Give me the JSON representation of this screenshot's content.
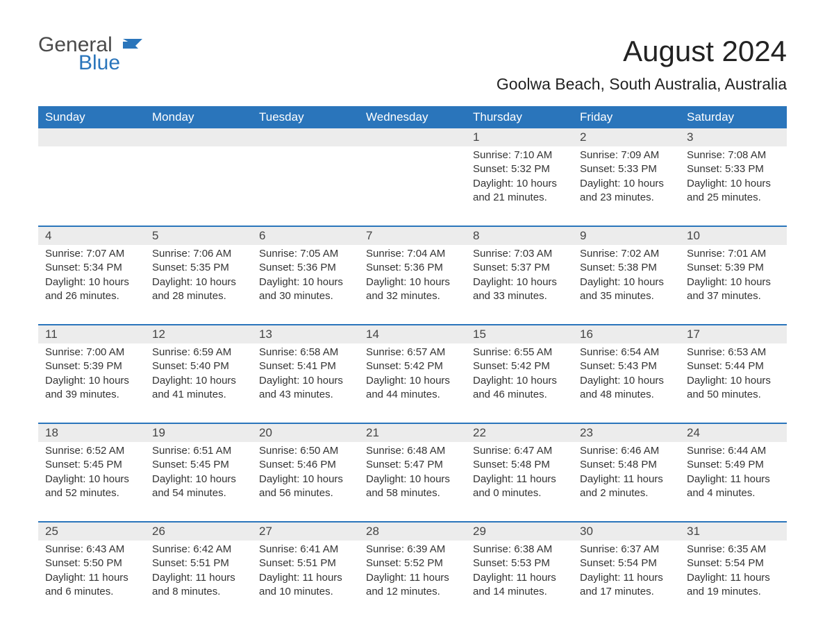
{
  "logo": {
    "general": "General",
    "blue": "Blue"
  },
  "header": {
    "month_title": "August 2024",
    "location": "Goolwa Beach, South Australia, Australia"
  },
  "colors": {
    "primary": "#2a75bb",
    "daynum_bg": "#ececec",
    "text": "#333333",
    "background": "#ffffff"
  },
  "day_labels": [
    "Sunday",
    "Monday",
    "Tuesday",
    "Wednesday",
    "Thursday",
    "Friday",
    "Saturday"
  ],
  "weeks": [
    [
      {
        "day": "",
        "sunrise": "",
        "sunset": "",
        "daylight": ""
      },
      {
        "day": "",
        "sunrise": "",
        "sunset": "",
        "daylight": ""
      },
      {
        "day": "",
        "sunrise": "",
        "sunset": "",
        "daylight": ""
      },
      {
        "day": "",
        "sunrise": "",
        "sunset": "",
        "daylight": ""
      },
      {
        "day": "1",
        "sunrise": "7:10 AM",
        "sunset": "5:32 PM",
        "daylight": "10 hours and 21 minutes."
      },
      {
        "day": "2",
        "sunrise": "7:09 AM",
        "sunset": "5:33 PM",
        "daylight": "10 hours and 23 minutes."
      },
      {
        "day": "3",
        "sunrise": "7:08 AM",
        "sunset": "5:33 PM",
        "daylight": "10 hours and 25 minutes."
      }
    ],
    [
      {
        "day": "4",
        "sunrise": "7:07 AM",
        "sunset": "5:34 PM",
        "daylight": "10 hours and 26 minutes."
      },
      {
        "day": "5",
        "sunrise": "7:06 AM",
        "sunset": "5:35 PM",
        "daylight": "10 hours and 28 minutes."
      },
      {
        "day": "6",
        "sunrise": "7:05 AM",
        "sunset": "5:36 PM",
        "daylight": "10 hours and 30 minutes."
      },
      {
        "day": "7",
        "sunrise": "7:04 AM",
        "sunset": "5:36 PM",
        "daylight": "10 hours and 32 minutes."
      },
      {
        "day": "8",
        "sunrise": "7:03 AM",
        "sunset": "5:37 PM",
        "daylight": "10 hours and 33 minutes."
      },
      {
        "day": "9",
        "sunrise": "7:02 AM",
        "sunset": "5:38 PM",
        "daylight": "10 hours and 35 minutes."
      },
      {
        "day": "10",
        "sunrise": "7:01 AM",
        "sunset": "5:39 PM",
        "daylight": "10 hours and 37 minutes."
      }
    ],
    [
      {
        "day": "11",
        "sunrise": "7:00 AM",
        "sunset": "5:39 PM",
        "daylight": "10 hours and 39 minutes."
      },
      {
        "day": "12",
        "sunrise": "6:59 AM",
        "sunset": "5:40 PM",
        "daylight": "10 hours and 41 minutes."
      },
      {
        "day": "13",
        "sunrise": "6:58 AM",
        "sunset": "5:41 PM",
        "daylight": "10 hours and 43 minutes."
      },
      {
        "day": "14",
        "sunrise": "6:57 AM",
        "sunset": "5:42 PM",
        "daylight": "10 hours and 44 minutes."
      },
      {
        "day": "15",
        "sunrise": "6:55 AM",
        "sunset": "5:42 PM",
        "daylight": "10 hours and 46 minutes."
      },
      {
        "day": "16",
        "sunrise": "6:54 AM",
        "sunset": "5:43 PM",
        "daylight": "10 hours and 48 minutes."
      },
      {
        "day": "17",
        "sunrise": "6:53 AM",
        "sunset": "5:44 PM",
        "daylight": "10 hours and 50 minutes."
      }
    ],
    [
      {
        "day": "18",
        "sunrise": "6:52 AM",
        "sunset": "5:45 PM",
        "daylight": "10 hours and 52 minutes."
      },
      {
        "day": "19",
        "sunrise": "6:51 AM",
        "sunset": "5:45 PM",
        "daylight": "10 hours and 54 minutes."
      },
      {
        "day": "20",
        "sunrise": "6:50 AM",
        "sunset": "5:46 PM",
        "daylight": "10 hours and 56 minutes."
      },
      {
        "day": "21",
        "sunrise": "6:48 AM",
        "sunset": "5:47 PM",
        "daylight": "10 hours and 58 minutes."
      },
      {
        "day": "22",
        "sunrise": "6:47 AM",
        "sunset": "5:48 PM",
        "daylight": "11 hours and 0 minutes."
      },
      {
        "day": "23",
        "sunrise": "6:46 AM",
        "sunset": "5:48 PM",
        "daylight": "11 hours and 2 minutes."
      },
      {
        "day": "24",
        "sunrise": "6:44 AM",
        "sunset": "5:49 PM",
        "daylight": "11 hours and 4 minutes."
      }
    ],
    [
      {
        "day": "25",
        "sunrise": "6:43 AM",
        "sunset": "5:50 PM",
        "daylight": "11 hours and 6 minutes."
      },
      {
        "day": "26",
        "sunrise": "6:42 AM",
        "sunset": "5:51 PM",
        "daylight": "11 hours and 8 minutes."
      },
      {
        "day": "27",
        "sunrise": "6:41 AM",
        "sunset": "5:51 PM",
        "daylight": "11 hours and 10 minutes."
      },
      {
        "day": "28",
        "sunrise": "6:39 AM",
        "sunset": "5:52 PM",
        "daylight": "11 hours and 12 minutes."
      },
      {
        "day": "29",
        "sunrise": "6:38 AM",
        "sunset": "5:53 PM",
        "daylight": "11 hours and 14 minutes."
      },
      {
        "day": "30",
        "sunrise": "6:37 AM",
        "sunset": "5:54 PM",
        "daylight": "11 hours and 17 minutes."
      },
      {
        "day": "31",
        "sunrise": "6:35 AM",
        "sunset": "5:54 PM",
        "daylight": "11 hours and 19 minutes."
      }
    ]
  ],
  "labels": {
    "sunrise": "Sunrise: ",
    "sunset": "Sunset: ",
    "daylight": "Daylight: "
  }
}
